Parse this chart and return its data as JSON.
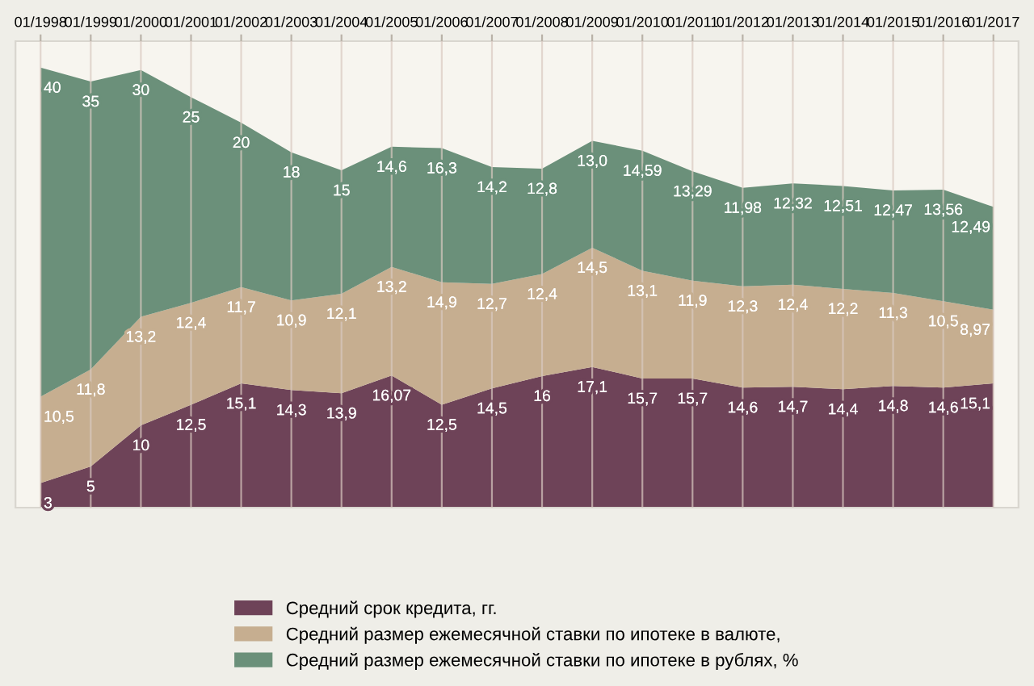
{
  "chart_data": {
    "type": "area",
    "stacked": true,
    "grid": "x",
    "legend": "bottom",
    "tick_labels": "x",
    "categories": [
      "01/1998",
      "01/1999",
      "01/2000",
      "01/2001",
      "01/2002",
      "01/2003",
      "01/2004",
      "01/2005",
      "01/2006",
      "01/2007",
      "01/2008",
      "01/2009",
      "01/2010",
      "01/2011",
      "01/2012",
      "01/2013",
      "01/2014",
      "01/2015",
      "01/2016",
      "01/2017"
    ],
    "series": [
      {
        "name": "Средний срок кредита, гг.",
        "color": "#6e4358",
        "values": [
          3,
          5,
          10,
          12.5,
          15.1,
          14.3,
          13.9,
          16.07,
          12.5,
          14.5,
          16,
          17.1,
          15.7,
          15.7,
          14.6,
          14.7,
          14.4,
          14.8,
          14.6,
          15.1
        ],
        "value_labels": [
          "3",
          "5",
          "10",
          "12,5",
          "15,1",
          "14,3",
          "13,9",
          "16,07",
          "12,5",
          "14,5",
          "16",
          "17,1",
          "15,7",
          "15,7",
          "14,6",
          "14,7",
          "14,4",
          "14,8",
          "14,6",
          "15,1"
        ]
      },
      {
        "name": "Средний размер ежемесячной ставки по ипотеке в валюте,",
        "color": "#c6ae90",
        "values": [
          10.5,
          11.8,
          13.2,
          12.4,
          11.7,
          10.9,
          12.1,
          13.2,
          14.9,
          12.7,
          12.4,
          14.5,
          13.1,
          11.9,
          12.3,
          12.4,
          12.2,
          11.3,
          10.5,
          8.97
        ],
        "value_labels": [
          "10,5",
          "11,8",
          "13,2",
          "12,4",
          "11,7",
          "10,9",
          "12,1",
          "13,2",
          "14,9",
          "12,7",
          "12,4",
          "14,5",
          "13,1",
          "11,9",
          "12,3",
          "12,4",
          "12,2",
          "11,3",
          "10,5",
          "8,97"
        ]
      },
      {
        "name": "Средний размер ежемесячной ставки по ипотеке в рублях, %",
        "color": "#6b907a",
        "values": [
          40,
          35,
          30,
          25,
          20,
          18,
          15,
          14.6,
          16.3,
          14.2,
          12.8,
          13.0,
          14.59,
          13.29,
          11.98,
          12.32,
          12.51,
          12.47,
          13.56,
          12.49
        ],
        "value_labels": [
          "40",
          "35",
          "30",
          "25",
          "20",
          "18",
          "15",
          "14,6",
          "16,3",
          "14,2",
          "12,8",
          "13,0",
          "14,59",
          "13,29",
          "11,98",
          "12,32",
          "12,51",
          "12,47",
          "13,56",
          "12,49"
        ]
      }
    ]
  }
}
